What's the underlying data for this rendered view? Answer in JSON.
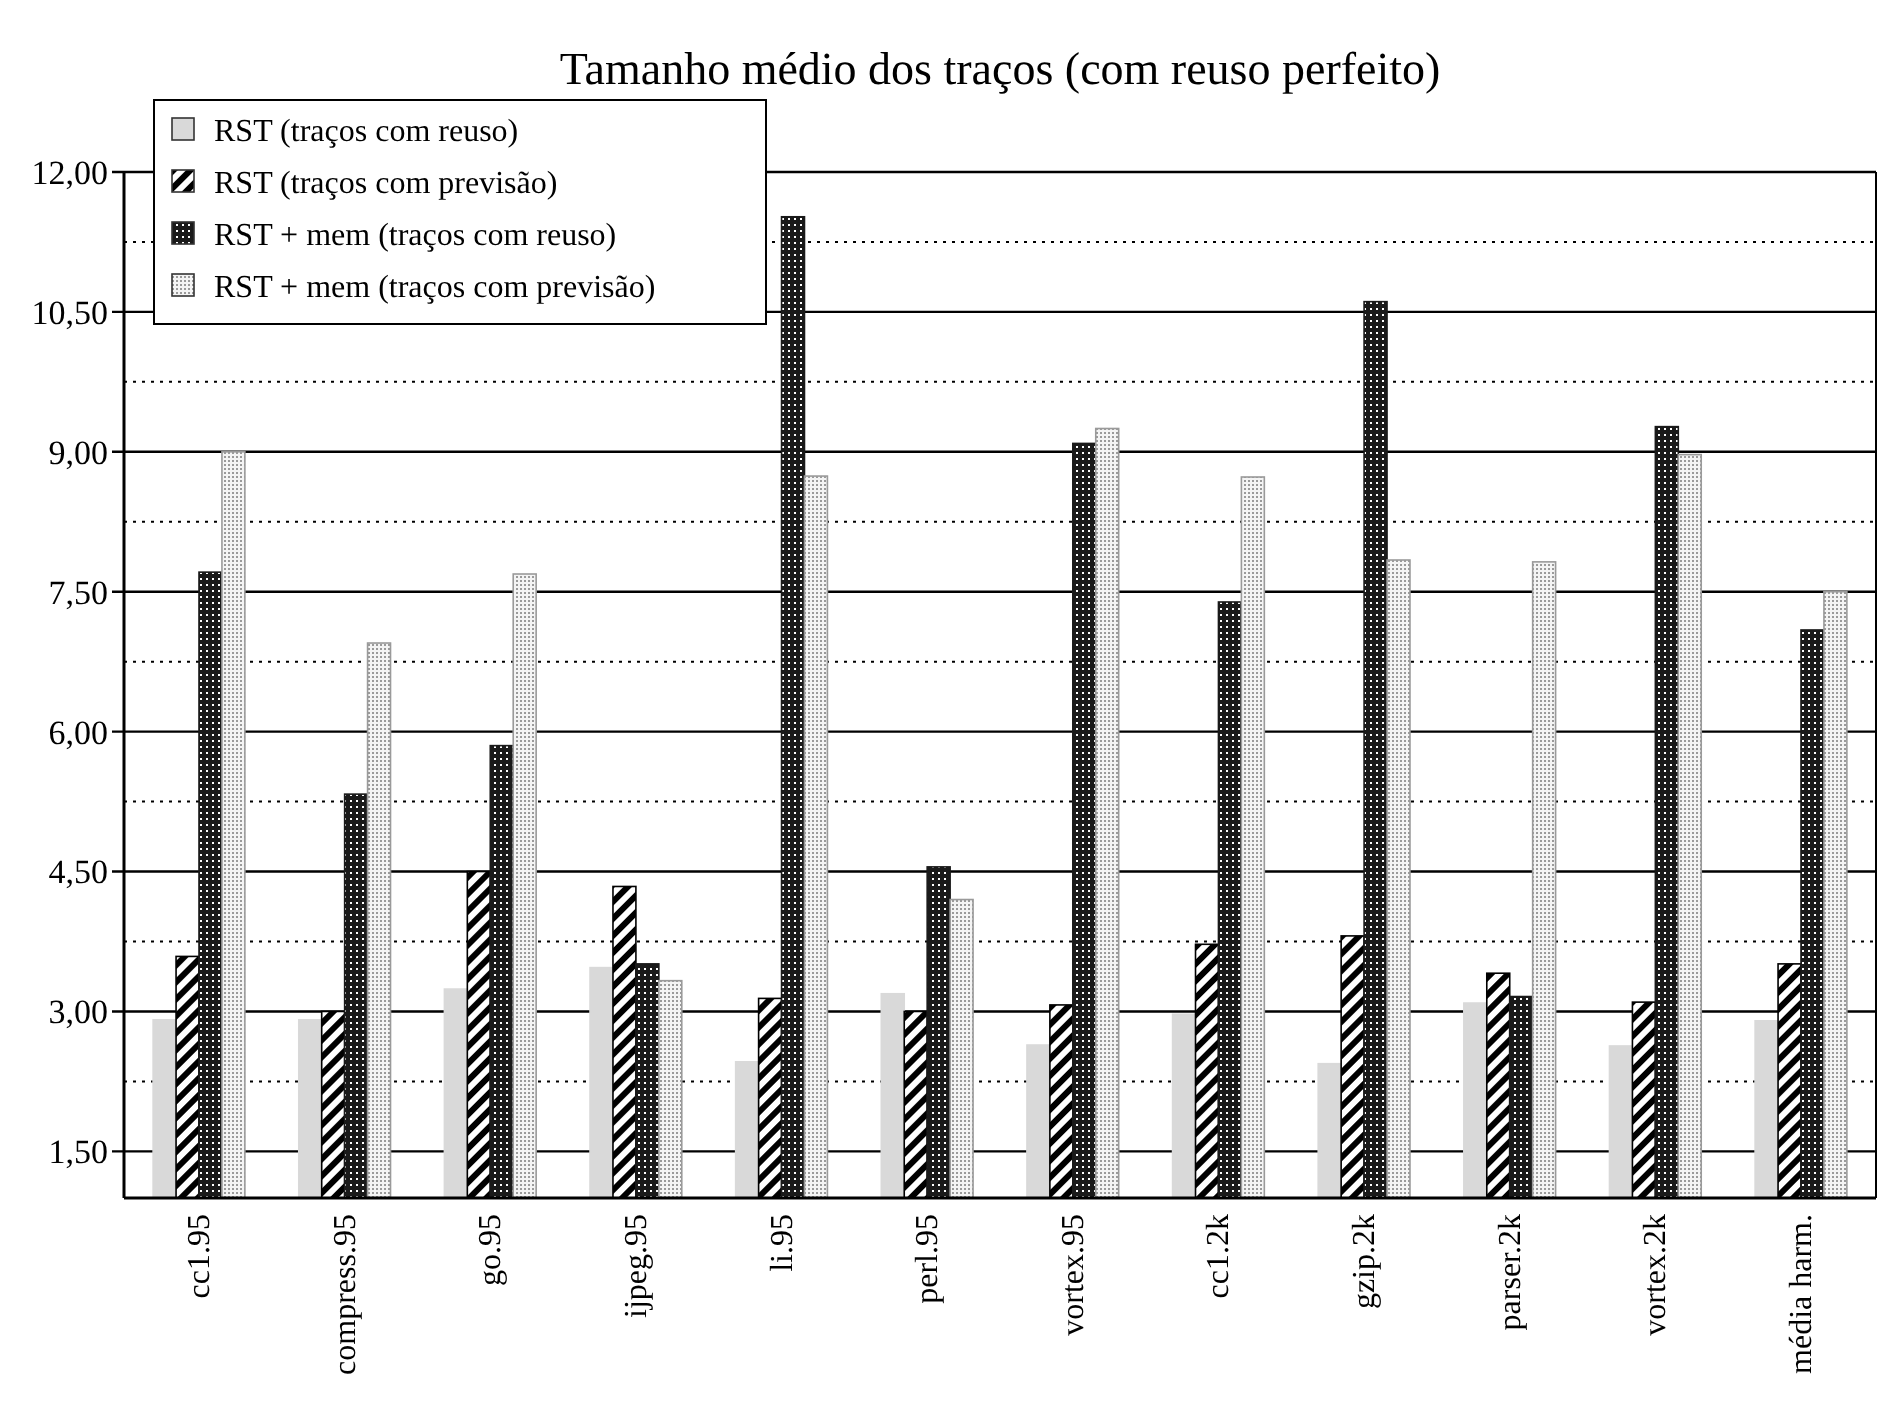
{
  "chart_data": {
    "type": "bar",
    "title": "Tamanho médio dos traços (com reuso perfeito)",
    "categories": [
      "cc1.95",
      "compress.95",
      "go.95",
      "ijpeg.95",
      "li.95",
      "perl.95",
      "vortex.95",
      "cc1.2k",
      "gzip.2k",
      "parser.2k",
      "vortex.2k",
      "média harm."
    ],
    "series": [
      {
        "name": "RST (traços com reuso)",
        "color": "#d9d9d9",
        "values": [
          2.91,
          2.91,
          3.24,
          3.47,
          2.46,
          3.19,
          2.64,
          2.97,
          2.44,
          3.09,
          2.63,
          2.9
        ]
      },
      {
        "name": "RST (traços com previsão)",
        "color": "#000000",
        "values": [
          3.59,
          3.0,
          4.5,
          4.34,
          3.14,
          3.0,
          3.07,
          3.72,
          3.81,
          3.41,
          3.1,
          3.51
        ]
      },
      {
        "name": "RST + mem (traços com reuso)",
        "color": "#1a1a1a",
        "values": [
          7.71,
          5.33,
          5.85,
          3.51,
          11.52,
          4.55,
          9.09,
          7.39,
          10.61,
          3.16,
          9.27,
          7.09
        ]
      },
      {
        "name": "RST + mem (traços com previsão)",
        "color": "#9a9a9a",
        "values": [
          9.0,
          6.95,
          7.69,
          3.33,
          8.74,
          4.2,
          9.25,
          8.73,
          7.84,
          7.82,
          8.97,
          7.5
        ]
      }
    ],
    "ylim": [
      1,
      12
    ],
    "yticks": [
      {
        "value": 1.5,
        "label": "1,50"
      },
      {
        "value": 2.25,
        "label": null
      },
      {
        "value": 3,
        "label": "3,00"
      },
      {
        "value": 3.75,
        "label": null
      },
      {
        "value": 4.5,
        "label": "4,50"
      },
      {
        "value": 5.25,
        "label": null
      },
      {
        "value": 6,
        "label": "6,00"
      },
      {
        "value": 6.75,
        "label": null
      },
      {
        "value": 7.5,
        "label": "7,50"
      },
      {
        "value": 8.25,
        "label": null
      },
      {
        "value": 9,
        "label": "9,00"
      },
      {
        "value": 9.75,
        "label": null
      },
      {
        "value": 10.5,
        "label": "10,50"
      },
      {
        "value": 11.25,
        "label": null
      },
      {
        "value": 12,
        "label": "12,00"
      }
    ],
    "grid": "y",
    "legend": "top left"
  }
}
